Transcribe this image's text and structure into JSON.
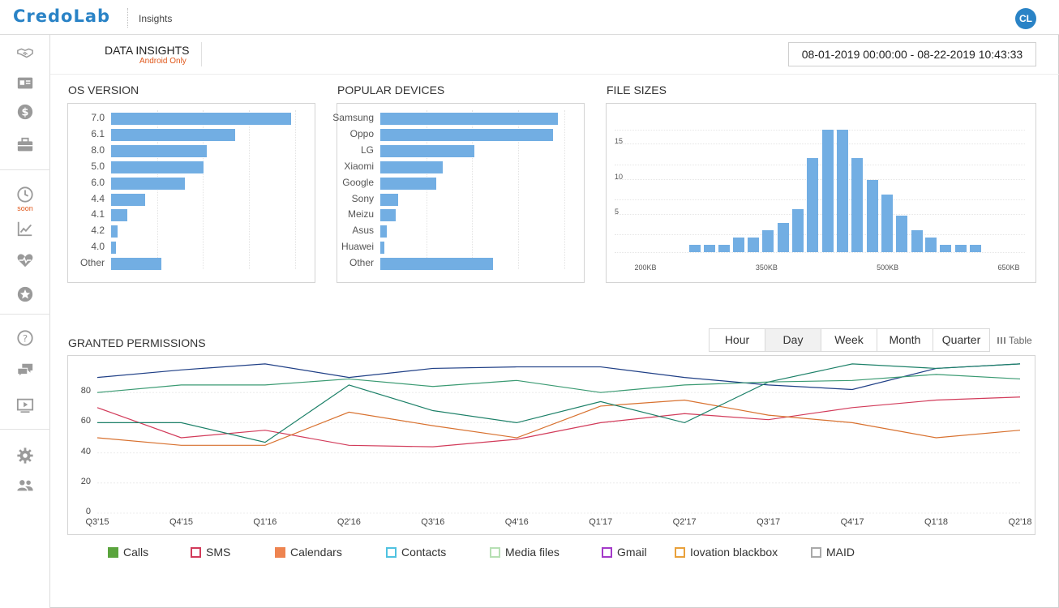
{
  "app": {
    "logo": "CredoLab",
    "page": "Insights",
    "avatar": "CL"
  },
  "sidebar": {
    "items": [
      {
        "icon": "handshake-icon"
      },
      {
        "icon": "id-card-icon"
      },
      {
        "icon": "dollar-icon"
      },
      {
        "icon": "briefcase-icon"
      },
      {
        "icon": "clock-icon"
      },
      {
        "icon": "chart-line-icon"
      },
      {
        "icon": "heartbeat-icon"
      },
      {
        "icon": "star-icon"
      },
      {
        "icon": "help-icon"
      },
      {
        "icon": "chat-icon"
      },
      {
        "icon": "play-icon"
      },
      {
        "icon": "gear-icon"
      },
      {
        "icon": "users-icon"
      }
    ],
    "soon_label": "soon"
  },
  "header": {
    "title": "DATA INSIGHTS",
    "subtitle": "Android Only",
    "date_range": "08-01-2019 00:00:00 - 08-22-2019 10:43:33"
  },
  "sections": {
    "os": "OS VERSION",
    "devices": "POPULAR DEVICES",
    "files": "FILE SIZES",
    "permissions": "GRANTED PERMISSIONS"
  },
  "period_tabs": [
    "Hour",
    "Day",
    "Week",
    "Month",
    "Quarter"
  ],
  "active_tab": "Day",
  "table_label": "Table",
  "chart_data": [
    {
      "type": "bar",
      "orientation": "horizontal",
      "title": "OS VERSION",
      "categories": [
        "7.0",
        "6.1",
        "8.0",
        "5.0",
        "6.0",
        "4.4",
        "4.1",
        "4.2",
        "4.0",
        "Other"
      ],
      "values": [
        235,
        162,
        125,
        121,
        96,
        45,
        21,
        9,
        6,
        66
      ],
      "xlim": [
        0,
        250
      ],
      "grid": true
    },
    {
      "type": "bar",
      "orientation": "horizontal",
      "title": "POPULAR DEVICES",
      "categories": [
        "Samsung",
        "Oppo",
        "LG",
        "Xiaomi",
        "Google",
        "Sony",
        "Meizu",
        "Asus",
        "Huawei",
        "Other"
      ],
      "values": [
        218,
        212,
        116,
        77,
        69,
        22,
        19,
        8,
        5,
        138
      ],
      "xlim": [
        0,
        235
      ],
      "grid": true
    },
    {
      "type": "bar",
      "title": "FILE SIZES",
      "x_tick_labels": [
        "200KB",
        "350KB",
        "500KB",
        "650KB"
      ],
      "x_ticks": [
        200,
        350,
        500,
        650
      ],
      "bin_centers": [
        261,
        279,
        297,
        316,
        334,
        352,
        371,
        389,
        407,
        426,
        444,
        462,
        481,
        499,
        517,
        536,
        554,
        572,
        591,
        609
      ],
      "values": [
        1,
        1,
        1,
        2,
        2,
        3,
        4,
        6,
        13,
        17,
        17,
        13,
        10,
        8,
        5,
        3,
        2,
        1,
        1,
        1
      ],
      "y_ticks": [
        5,
        10,
        15
      ],
      "ylim": [
        0,
        20
      ]
    },
    {
      "type": "line",
      "title": "GRANTED PERMISSIONS",
      "categories": [
        "Q3'15",
        "Q4'15",
        "Q1'16",
        "Q2'16",
        "Q3'16",
        "Q4'16",
        "Q1'17",
        "Q2'17",
        "Q3'17",
        "Q4'17",
        "Q1'18",
        "Q2'18"
      ],
      "y_ticks": [
        0,
        20,
        40,
        60,
        80
      ],
      "ylim": [
        0,
        100
      ],
      "series": [
        {
          "name": "Calls",
          "color": "#1f3f86",
          "values": [
            90,
            95,
            99,
            90,
            96,
            97,
            97,
            90,
            85,
            82,
            96,
            99
          ]
        },
        {
          "name": "SMS",
          "color": "#d23b5a",
          "values": [
            70,
            50,
            55,
            45,
            44,
            49,
            60,
            66,
            62,
            70,
            75,
            77
          ]
        },
        {
          "name": "Calendars",
          "color": "#d8712f",
          "values": [
            50,
            45,
            45,
            67,
            58,
            50,
            71,
            75,
            65,
            60,
            50,
            55
          ]
        },
        {
          "name": "Contacts",
          "color": "#1c8068",
          "values": [
            60,
            60,
            47,
            85,
            68,
            60,
            74,
            60,
            87,
            99,
            96,
            99
          ]
        },
        {
          "name": "Media files",
          "color": "#3a9a72",
          "values": [
            80,
            85,
            85,
            89,
            84,
            88,
            80,
            85,
            87,
            88,
            92,
            89
          ]
        }
      ],
      "legend": {
        "position": "bottom",
        "items": [
          {
            "name": "Calls",
            "color": "#5aa43d",
            "filled": true
          },
          {
            "name": "SMS",
            "color": "#d23b5a",
            "filled": false
          },
          {
            "name": "Calendars",
            "color": "#ee8450",
            "filled": true
          },
          {
            "name": "Contacts",
            "color": "#4fc2e0",
            "filled": false
          },
          {
            "name": "Media files",
            "color": "#b7e0b4",
            "filled": false
          },
          {
            "name": "Gmail",
            "color": "#a43ac9",
            "filled": false
          },
          {
            "name": "Iovation blackbox",
            "color": "#e9a13b",
            "filled": false
          },
          {
            "name": "MAID",
            "color": "#a9a9a9",
            "filled": false
          }
        ]
      }
    }
  ]
}
